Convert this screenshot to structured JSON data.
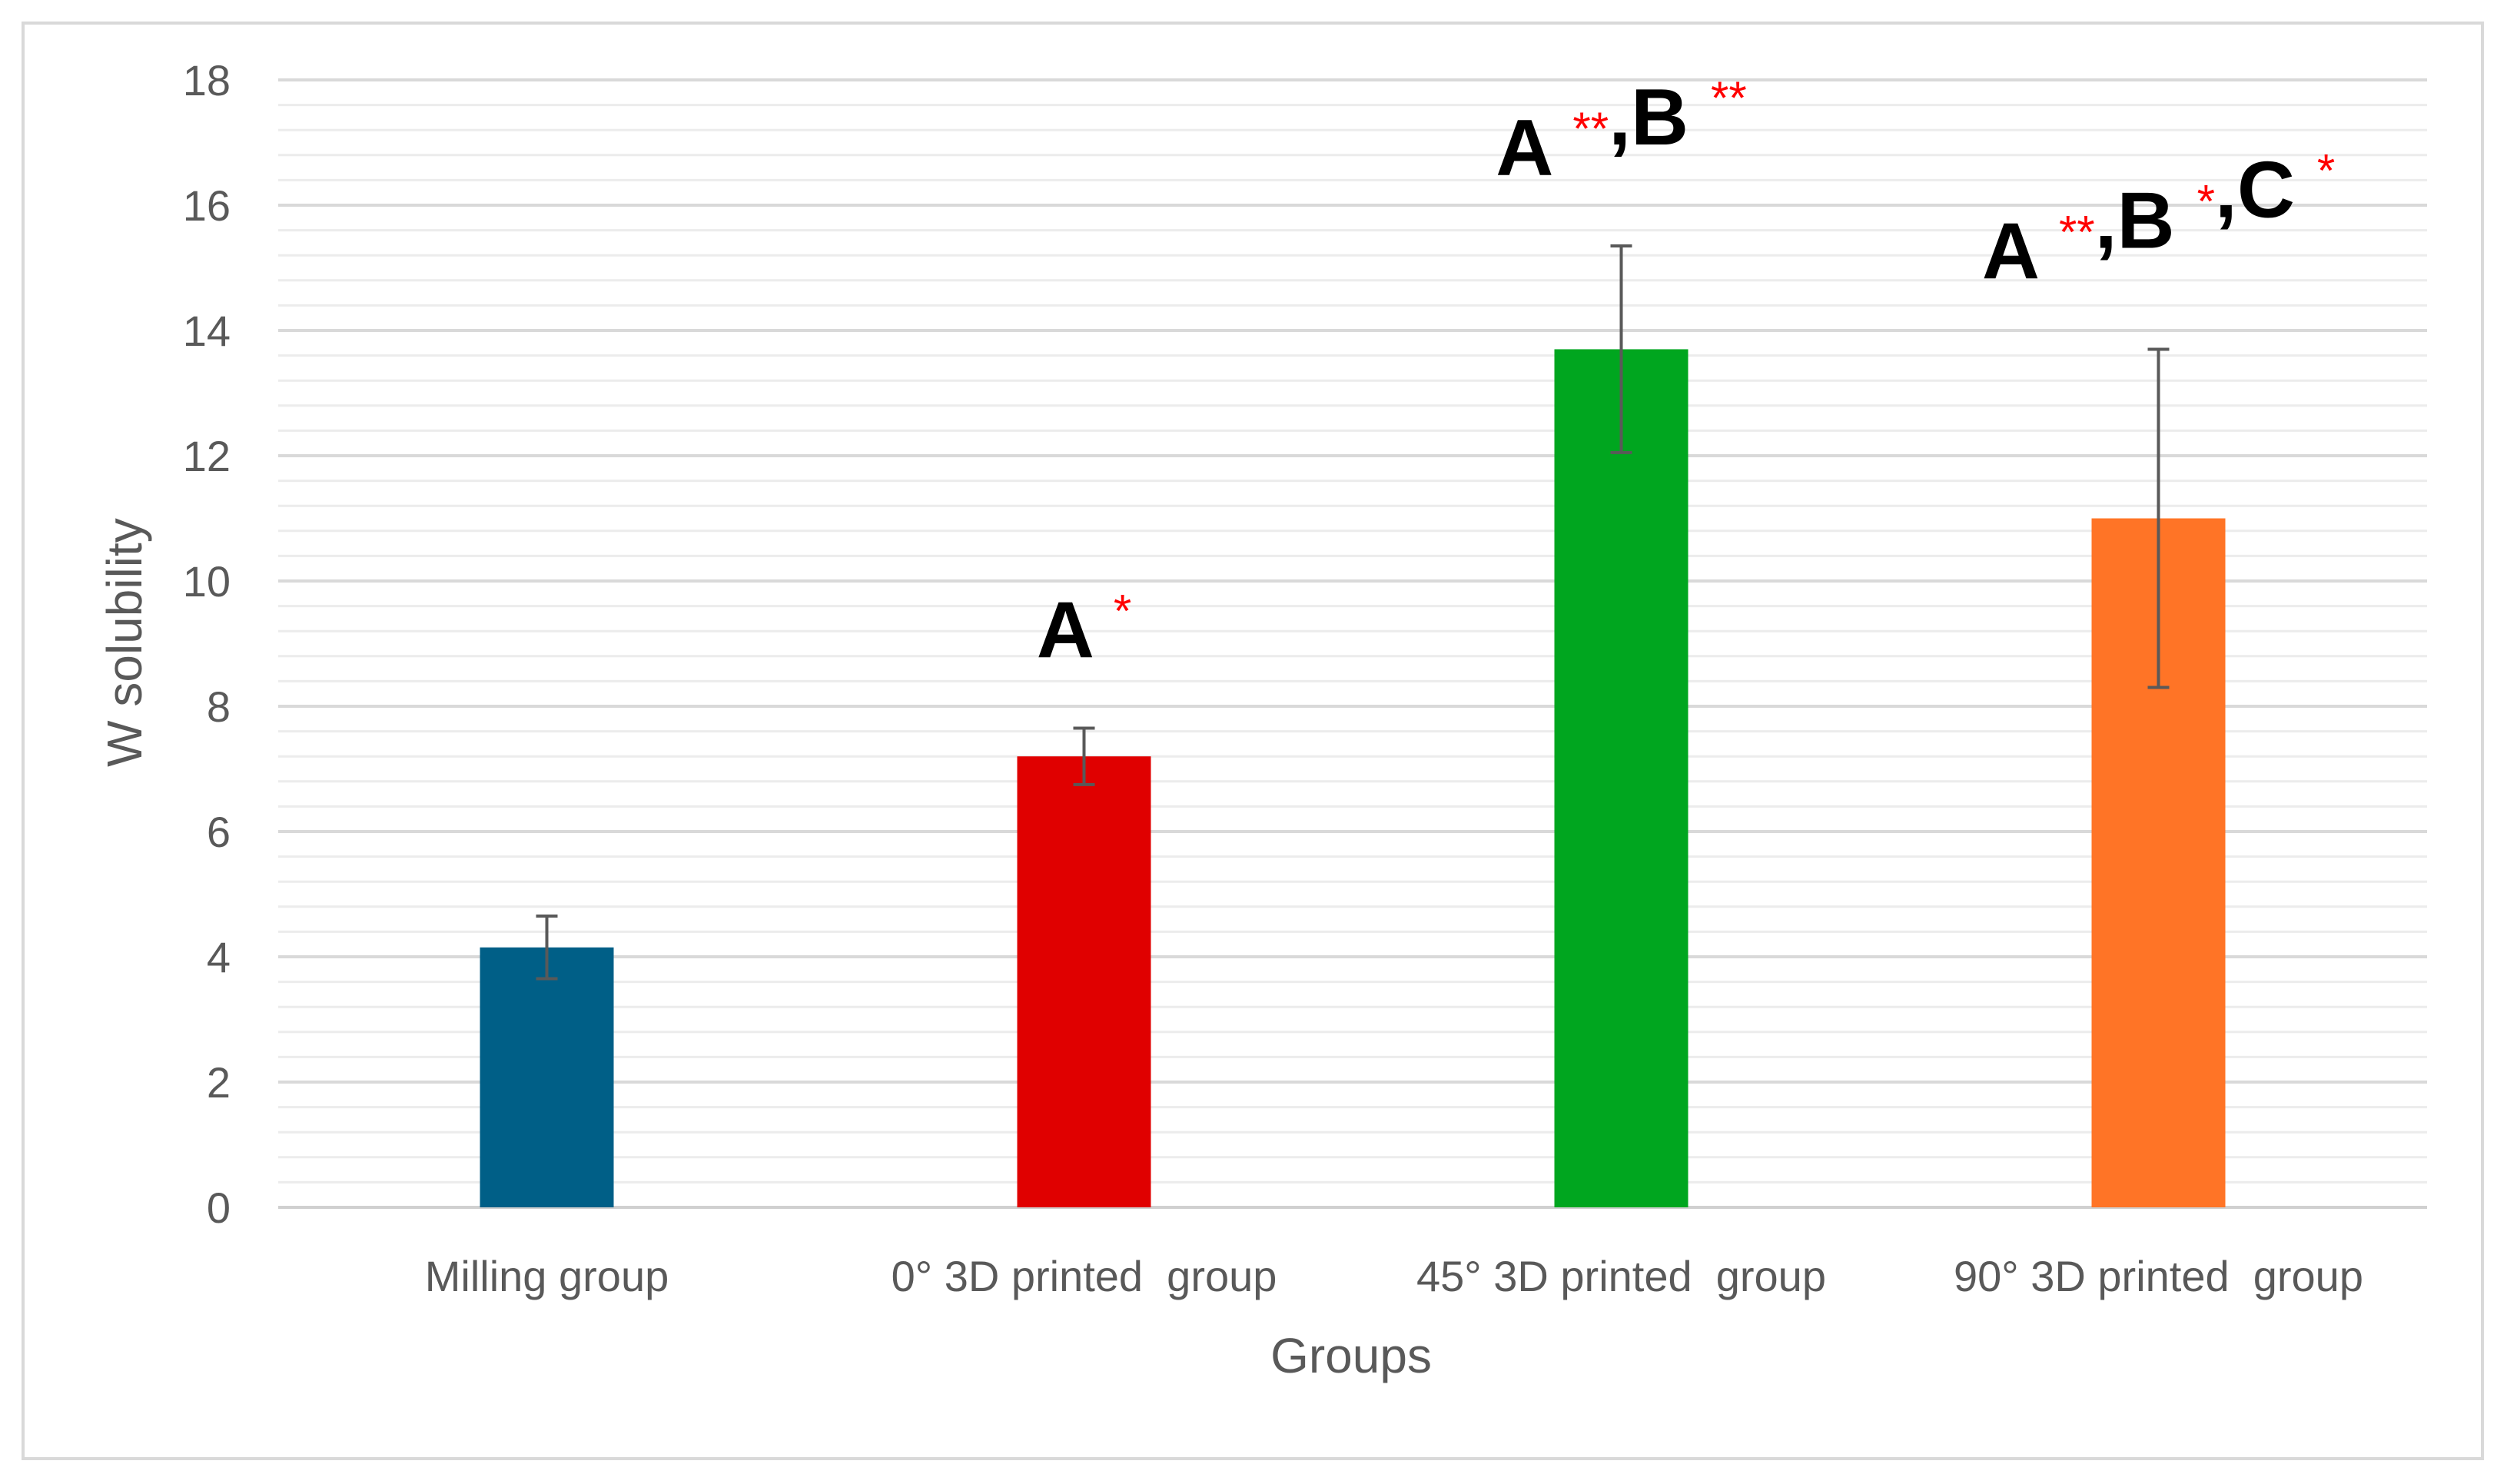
{
  "chart_data": {
    "type": "bar",
    "title": "",
    "xlabel": "Groups",
    "ylabel": "W solubility",
    "categories": [
      "Milling group",
      "0° 3D printed  group",
      "45° 3D printed  group",
      "90° 3D printed  group"
    ],
    "values": [
      4.15,
      7.2,
      13.7,
      11.0
    ],
    "error": [
      0.5,
      0.45,
      1.65,
      2.7
    ],
    "colors": [
      "#005f87",
      "#e00000",
      "#00a61f",
      "#ff7426"
    ],
    "ylim": [
      0,
      18
    ],
    "yticks": [
      0,
      2,
      4,
      6,
      8,
      10,
      12,
      14,
      16,
      18
    ],
    "minor_grid_step": 0.4,
    "grid": true,
    "legend": "none",
    "annotations": [
      [],
      [
        {
          "letter": "A",
          "stars": "*"
        }
      ],
      [
        {
          "letter": "A",
          "stars": "**"
        },
        {
          "letter": "B",
          "stars": "**"
        }
      ],
      [
        {
          "letter": "A",
          "stars": "**"
        },
        {
          "letter": "B",
          "stars": "*"
        },
        {
          "letter": "C",
          "stars": "*"
        }
      ]
    ]
  }
}
